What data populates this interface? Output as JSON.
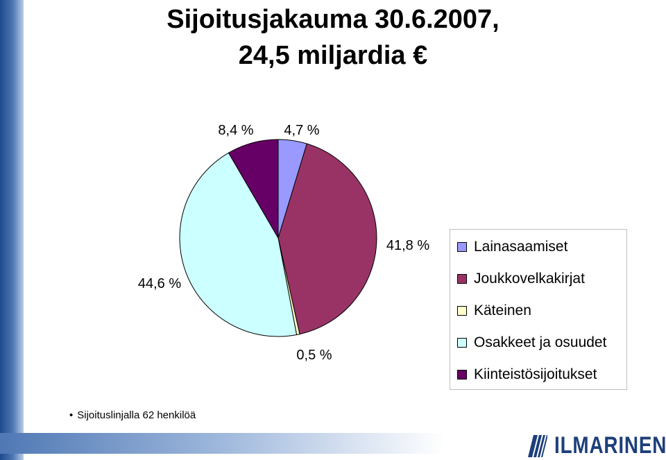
{
  "title_line1": "Sijoitusjakauma 30.6.2007,",
  "title_line2": "24,5 miljardia €",
  "footnote": "Sijoituslinjalla 62 henkilöä",
  "logo_text": "ILMARINEN",
  "chart_data": {
    "type": "pie",
    "title": "Sijoitusjakauma 30.6.2007, 24,5 miljardia €",
    "start_angle_deg": 0,
    "direction": "clockwise",
    "legend_position": "right",
    "slices": [
      {
        "name": "Lainasaamiset",
        "value": 4.7,
        "label": "4,7 %",
        "color": "#9999ff"
      },
      {
        "name": "Joukkovelkakirjat",
        "value": 41.8,
        "label": "41,8 %",
        "color": "#993366"
      },
      {
        "name": "Käteinen",
        "value": 0.5,
        "label": "0,5 %",
        "color": "#ffffcc"
      },
      {
        "name": "Osakkeet ja osuudet",
        "value": 44.6,
        "label": "44,6 %",
        "color": "#ccffff"
      },
      {
        "name": "Kiinteistösijoitukset",
        "value": 8.4,
        "label": "8,4 %",
        "color": "#660066"
      }
    ]
  }
}
